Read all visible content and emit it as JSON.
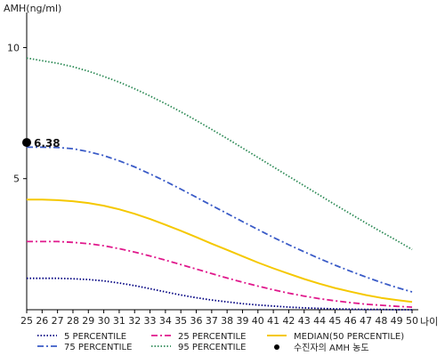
{
  "chart_data": {
    "type": "line",
    "title": "",
    "ylabel": "AMH(ng/ml)",
    "xlabel": "나이",
    "x": [
      25,
      26,
      27,
      28,
      29,
      30,
      31,
      32,
      33,
      34,
      35,
      36,
      37,
      38,
      39,
      40,
      41,
      42,
      43,
      44,
      45,
      46,
      47,
      48,
      49,
      50
    ],
    "xlim": [
      25,
      50
    ],
    "ylim": [
      0,
      11
    ],
    "yticks": [
      5,
      10
    ],
    "series": [
      {
        "name": "5 PERCENTILE",
        "color": "#000080",
        "dash": "dotted",
        "values": [
          1.2,
          1.2,
          1.2,
          1.18,
          1.15,
          1.1,
          1.02,
          0.92,
          0.8,
          0.68,
          0.56,
          0.46,
          0.37,
          0.3,
          0.23,
          0.18,
          0.14,
          0.1,
          0.07,
          0.05,
          0.03,
          0.02,
          0.01,
          0.01,
          0.0,
          0.0
        ]
      },
      {
        "name": "25 PERCENTILE",
        "color": "#e0198c",
        "dash": "dashdot",
        "values": [
          2.6,
          2.6,
          2.6,
          2.57,
          2.52,
          2.44,
          2.33,
          2.2,
          2.05,
          1.89,
          1.72,
          1.55,
          1.38,
          1.21,
          1.05,
          0.9,
          0.76,
          0.63,
          0.52,
          0.42,
          0.34,
          0.27,
          0.21,
          0.17,
          0.13,
          0.1
        ]
      },
      {
        "name": "MEDIAN(50 PERCENTILE)",
        "color": "#f5c800",
        "dash": "solid",
        "values": [
          4.2,
          4.2,
          4.18,
          4.14,
          4.07,
          3.97,
          3.83,
          3.66,
          3.46,
          3.24,
          3.01,
          2.77,
          2.52,
          2.28,
          2.04,
          1.8,
          1.58,
          1.37,
          1.17,
          0.99,
          0.83,
          0.69,
          0.56,
          0.45,
          0.37,
          0.3
        ]
      },
      {
        "name": "75 PERCENTILE",
        "color": "#3a5bc7",
        "dash": "dashdot",
        "values": [
          6.2,
          6.2,
          6.19,
          6.14,
          6.03,
          5.88,
          5.68,
          5.45,
          5.18,
          4.9,
          4.6,
          4.29,
          3.98,
          3.67,
          3.36,
          3.06,
          2.76,
          2.48,
          2.21,
          1.95,
          1.7,
          1.47,
          1.25,
          1.04,
          0.85,
          0.68
        ]
      },
      {
        "name": "95 PERCENTILE",
        "color": "#2e8b57",
        "dash": "dotted",
        "values": [
          9.6,
          9.5,
          9.4,
          9.27,
          9.1,
          8.9,
          8.68,
          8.43,
          8.15,
          7.86,
          7.55,
          7.22,
          6.88,
          6.53,
          6.17,
          5.81,
          5.45,
          5.09,
          4.73,
          4.37,
          4.01,
          3.66,
          3.31,
          2.97,
          2.64,
          2.3
        ]
      }
    ],
    "marker": {
      "name": "수진자의 AMH 농도",
      "x": 25,
      "y": 6.38,
      "label": "6.38",
      "color": "#000000"
    },
    "legend_position": "bottom",
    "grid": false
  }
}
